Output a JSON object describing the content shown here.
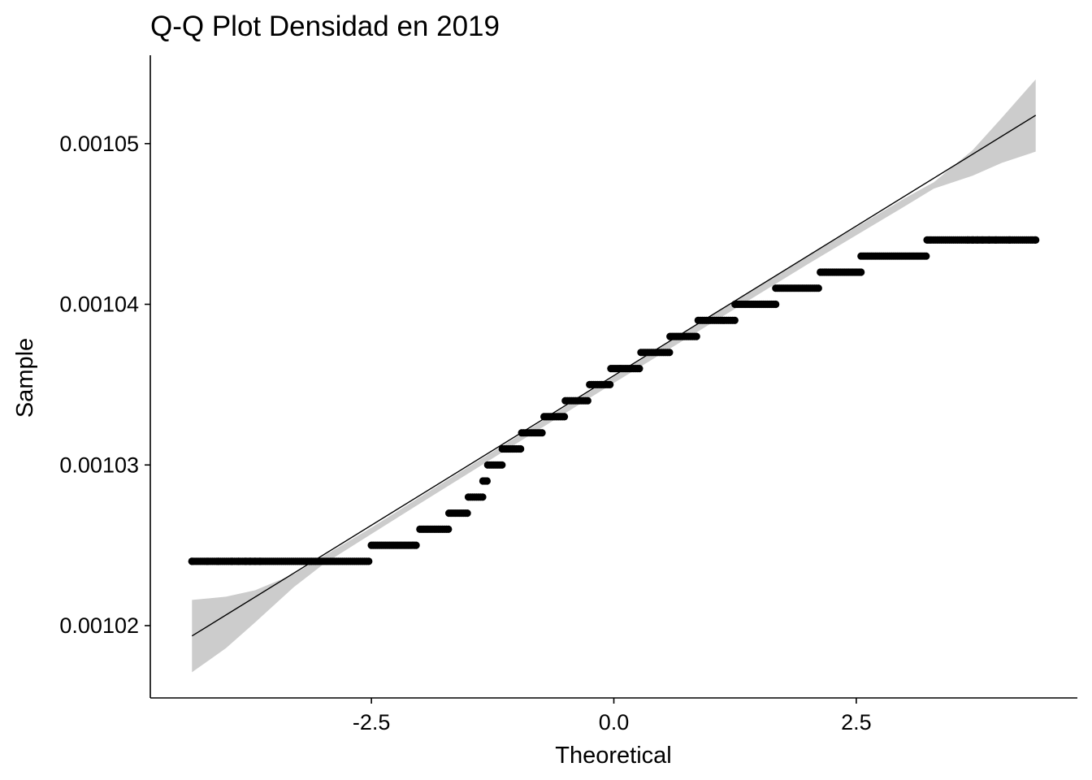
{
  "chart_data": {
    "type": "scatter",
    "title": "Q-Q Plot Densidad en 2019",
    "xlabel": "Theoretical",
    "ylabel": "Sample",
    "xlim": [
      -4.78,
      4.78
    ],
    "ylim": [
      0.0010155,
      0.0010555
    ],
    "x_ticks": [
      -2.5,
      0.0,
      2.5
    ],
    "x_tick_labels": [
      "-2.5",
      "0.0",
      "2.5"
    ],
    "y_ticks": [
      0.00102,
      0.00103,
      0.00104,
      0.00105
    ],
    "y_tick_labels": [
      "0.00102",
      "0.00103",
      "0.00104",
      "0.00105"
    ],
    "grid": false,
    "colors": {
      "points": "#000000",
      "line": "#000000",
      "band": "#cccccc"
    },
    "sample_groups": [
      {
        "y": 0.001024,
        "x_from": -4.35,
        "x_to": -2.52,
        "isolated_x": [
          -4.35,
          -4.08,
          -3.94,
          -3.87,
          -3.8,
          -3.75,
          -3.7,
          -3.65
        ]
      },
      {
        "y": 0.001025,
        "x_from": -2.5,
        "x_to": -2.02
      },
      {
        "y": 0.001026,
        "x_from": -2.0,
        "x_to": -1.7
      },
      {
        "y": 0.001027,
        "x_from": -1.7,
        "x_to": -1.5
      },
      {
        "y": 0.001028,
        "x_from": -1.5,
        "x_to": -1.35
      },
      {
        "y": 0.001029,
        "x_from": -1.35,
        "x_to": -1.3
      },
      {
        "y": 0.00103,
        "x_from": -1.3,
        "x_to": -1.15
      },
      {
        "y": 0.001031,
        "x_from": -1.15,
        "x_to": -0.95
      },
      {
        "y": 0.001032,
        "x_from": -0.95,
        "x_to": -0.72
      },
      {
        "y": 0.001033,
        "x_from": -0.72,
        "x_to": -0.5
      },
      {
        "y": 0.001034,
        "x_from": -0.5,
        "x_to": -0.25
      },
      {
        "y": 0.001035,
        "x_from": -0.25,
        "x_to": -0.03
      },
      {
        "y": 0.001036,
        "x_from": -0.03,
        "x_to": 0.28
      },
      {
        "y": 0.001037,
        "x_from": 0.28,
        "x_to": 0.58
      },
      {
        "y": 0.001038,
        "x_from": 0.58,
        "x_to": 0.87
      },
      {
        "y": 0.001039,
        "x_from": 0.87,
        "x_to": 1.25
      },
      {
        "y": 0.00104,
        "x_from": 1.25,
        "x_to": 1.67
      },
      {
        "y": 0.001041,
        "x_from": 1.67,
        "x_to": 2.13
      },
      {
        "y": 0.001042,
        "x_from": 2.13,
        "x_to": 2.55
      },
      {
        "y": 0.001043,
        "x_from": 2.55,
        "x_to": 3.23
      },
      {
        "y": 0.001044,
        "x_from": 3.23,
        "x_to": 4.35,
        "isolated_x": [
          3.65,
          3.7,
          3.75,
          3.8,
          3.87,
          3.94,
          4.08,
          4.35
        ]
      }
    ],
    "reference_line": {
      "x": [
        -4.35,
        4.35
      ],
      "y": [
        0.001019359,
        0.001051762
      ]
    },
    "confidence_band": {
      "x": [
        -4.35,
        -4.0,
        -3.7,
        -3.3,
        -3.0,
        -2.5,
        -2.0,
        0.0,
        2.0,
        2.5,
        3.0,
        3.3,
        3.7,
        4.0,
        4.35
      ],
      "lower": [
        0.0010171,
        0.0010186,
        0.0010202,
        0.0010224,
        0.0010238,
        0.0010257,
        0.0010276,
        0.0010351,
        0.0010425,
        0.0010443,
        0.0010461,
        0.0010472,
        0.001048,
        0.0010488,
        0.0010495
      ],
      "upper": [
        0.0010216,
        0.0010218,
        0.0010222,
        0.0010232,
        0.0010243,
        0.0010261,
        0.001028,
        0.0010355,
        0.001043,
        0.0010448,
        0.0010466,
        0.0010476,
        0.0010496,
        0.0010516,
        0.001054
      ]
    }
  }
}
